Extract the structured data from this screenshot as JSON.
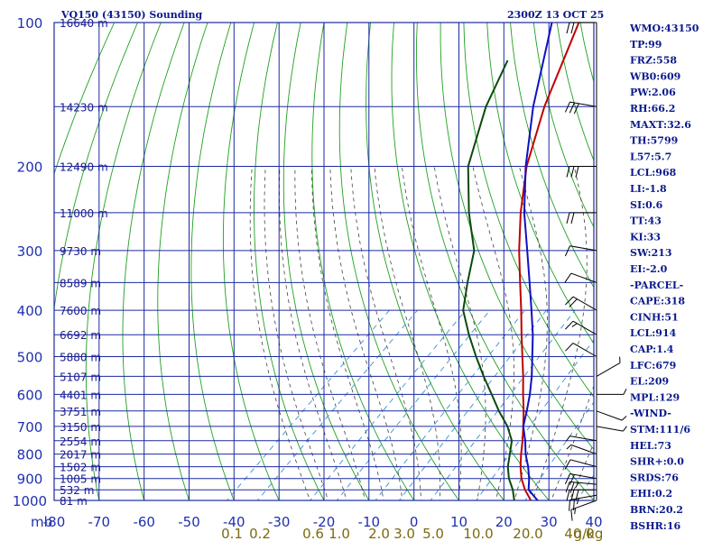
{
  "title_left": "VQ150 (43150) Sounding",
  "title_right": "2300Z 13 OCT 25",
  "colors": {
    "grid": "#1a2aa0",
    "dry_adiabat": "#20a020",
    "moist_adiabat": "#404040",
    "mixing_ratio": "#3a8ed8",
    "temperature": "#c00000",
    "dewpoint": "#0a4a0a",
    "parcel": "#1010c0",
    "wind": "#000000"
  },
  "chart_data": {
    "type": "line",
    "title": "VQ150 (43150) Sounding",
    "subtitle": "2300Z 13 OCT 25",
    "xlabel": "mb",
    "xlim": [
      -80,
      40
    ],
    "ylim": [
      1000,
      100
    ],
    "x_ticks": [
      "-80",
      "-70",
      "-60",
      "-50",
      "-40",
      "-30",
      "-20",
      "-10",
      "0",
      "10",
      "20",
      "30",
      "40"
    ],
    "x_tick_values": [
      -80,
      -70,
      -60,
      -50,
      -40,
      -30,
      -20,
      -10,
      0,
      10,
      20,
      30,
      40
    ],
    "y_ticks": [
      "100",
      "200",
      "300",
      "400",
      "500",
      "600",
      "700",
      "800",
      "900",
      "1000"
    ],
    "y_tick_values": [
      100,
      200,
      300,
      400,
      500,
      600,
      700,
      800,
      900,
      1000
    ],
    "x_axis_label": "mb",
    "height_labels": [
      {
        "p": 100,
        "label": "16640 m"
      },
      {
        "p": 150,
        "label": "14230 m"
      },
      {
        "p": 200,
        "label": "12490 m"
      },
      {
        "p": 250,
        "label": "11000 m"
      },
      {
        "p": 300,
        "label": "9730 m"
      },
      {
        "p": 350,
        "label": "8589 m"
      },
      {
        "p": 400,
        "label": "7600 m"
      },
      {
        "p": 450,
        "label": "6692 m"
      },
      {
        "p": 500,
        "label": "5880 m"
      },
      {
        "p": 550,
        "label": "5107 m"
      },
      {
        "p": 600,
        "label": "4401 m"
      },
      {
        "p": 650,
        "label": "3751 m"
      },
      {
        "p": 700,
        "label": "3150 m"
      },
      {
        "p": 750,
        "label": "2554 m"
      },
      {
        "p": 800,
        "label": "2017 m"
      },
      {
        "p": 850,
        "label": "1502 m"
      },
      {
        "p": 900,
        "label": "1005 m"
      },
      {
        "p": 950,
        "label": "532 m"
      },
      {
        "p": 1000,
        "label": "81 m"
      }
    ],
    "mixing_ratio_labels": [
      {
        "label": "0.1",
        "value": 0.1
      },
      {
        "label": "0.2",
        "value": 0.2
      },
      {
        "label": "0.6",
        "value": 0.6
      },
      {
        "label": "1.0",
        "value": 1.0
      },
      {
        "label": "2.0",
        "value": 2.0
      },
      {
        "label": "3.0",
        "value": 3.0
      },
      {
        "label": "5.0",
        "value": 5.0
      },
      {
        "label": "10.0",
        "value": 10.0
      },
      {
        "label": "20.0",
        "value": 20.0
      },
      {
        "label": "40.0",
        "value": 40.0
      }
    ],
    "mixing_ratio_unit": "g/kg",
    "series": [
      {
        "name": "temperature",
        "points": [
          [
            1000,
            26
          ],
          [
            950,
            22.2
          ],
          [
            900,
            18.8
          ],
          [
            850,
            15.8
          ],
          [
            800,
            13
          ],
          [
            750,
            10.2
          ],
          [
            700,
            7
          ],
          [
            650,
            3.5
          ],
          [
            600,
            -0.5
          ],
          [
            550,
            -4.7
          ],
          [
            500,
            -9.5
          ],
          [
            450,
            -14.8
          ],
          [
            400,
            -20.6
          ],
          [
            350,
            -27.3
          ],
          [
            300,
            -35
          ],
          [
            250,
            -43.5
          ],
          [
            200,
            -53
          ],
          [
            150,
            -63
          ],
          [
            100,
            -75
          ]
        ]
      },
      {
        "name": "dewpoint",
        "points": [
          [
            1000,
            22.3
          ],
          [
            950,
            19.5
          ],
          [
            900,
            16
          ],
          [
            850,
            13
          ],
          [
            800,
            10.5
          ],
          [
            750,
            7.8
          ],
          [
            700,
            3.5
          ],
          [
            650,
            -2
          ],
          [
            600,
            -7.5
          ],
          [
            550,
            -13.5
          ],
          [
            500,
            -19.8
          ],
          [
            450,
            -26.5
          ],
          [
            400,
            -33.5
          ],
          [
            350,
            -39
          ],
          [
            300,
            -45
          ],
          [
            250,
            -55
          ],
          [
            200,
            -66
          ],
          [
            150,
            -76
          ],
          [
            120,
            -82
          ]
        ]
      },
      {
        "name": "parcel",
        "points": [
          [
            1000,
            27.5
          ],
          [
            950,
            23
          ],
          [
            900,
            20.5
          ],
          [
            850,
            17.5
          ],
          [
            800,
            14
          ],
          [
            750,
            10.8
          ],
          [
            700,
            7
          ],
          [
            650,
            4.2
          ],
          [
            600,
            1
          ],
          [
            550,
            -2.8
          ],
          [
            500,
            -7.3
          ],
          [
            450,
            -12.3
          ],
          [
            400,
            -18.3
          ],
          [
            350,
            -25.2
          ],
          [
            300,
            -33.2
          ],
          [
            250,
            -42.7
          ],
          [
            200,
            -53.2
          ],
          [
            150,
            -65.5
          ],
          [
            100,
            -81
          ]
        ]
      }
    ],
    "wind_barbs": [
      {
        "p": 1000,
        "dir": 250,
        "spd": 15
      },
      {
        "p": 975,
        "dir": 260,
        "spd": 25
      },
      {
        "p": 950,
        "dir": 270,
        "spd": 30
      },
      {
        "p": 925,
        "dir": 275,
        "spd": 25
      },
      {
        "p": 900,
        "dir": 280,
        "spd": 20
      },
      {
        "p": 850,
        "dir": 285,
        "spd": 10
      },
      {
        "p": 800,
        "dir": 290,
        "spd": 5
      },
      {
        "p": 750,
        "dir": 280,
        "spd": 5
      },
      {
        "p": 700,
        "dir": 100,
        "spd": 5
      },
      {
        "p": 650,
        "dir": 110,
        "spd": 5
      },
      {
        "p": 600,
        "dir": 90,
        "spd": 5
      },
      {
        "p": 550,
        "dir": 60,
        "spd": 5
      },
      {
        "p": 500,
        "dir": 300,
        "spd": 10
      },
      {
        "p": 450,
        "dir": 300,
        "spd": 15
      },
      {
        "p": 400,
        "dir": 300,
        "spd": 20
      },
      {
        "p": 350,
        "dir": 290,
        "spd": 10
      },
      {
        "p": 300,
        "dir": 280,
        "spd": 10
      },
      {
        "p": 250,
        "dir": 270,
        "spd": 20
      },
      {
        "p": 200,
        "dir": 270,
        "spd": 30
      },
      {
        "p": 150,
        "dir": 280,
        "spd": 30
      },
      {
        "p": 100,
        "dir": 270,
        "spd": 20
      }
    ]
  },
  "indices": [
    "WMO:43150",
    "TP:99",
    "FRZ:558",
    "WB0:609",
    "PW:2.06",
    "RH:66.2",
    "MAXT:32.6",
    "TH:5799",
    "L57:5.7",
    "LCL:968",
    "LI:-1.8",
    "SI:0.6",
    "TT:43",
    "KI:33",
    "SW:213",
    "EI:-2.0",
    "-PARCEL-",
    "CAPE:318",
    "CINH:51",
    "LCL:914",
    "CAP:1.4",
    "LFC:679",
    "EL:209",
    "MPL:129",
    "-WIND-",
    "STM:111/6",
    "HEL:73",
    "SHR+:0.0",
    "SRDS:76",
    "EHI:0.2",
    "BRN:20.2",
    "BSHR:16"
  ]
}
